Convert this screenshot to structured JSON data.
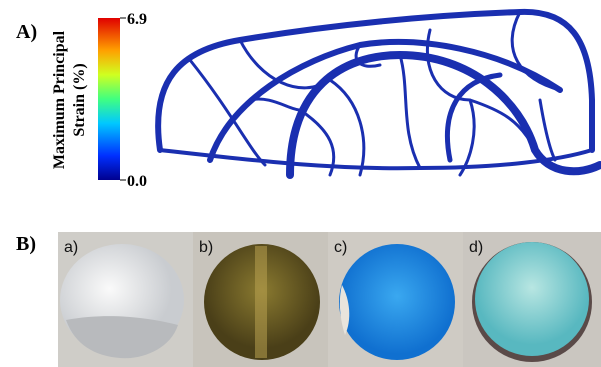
{
  "panel_a": {
    "label": "A)",
    "colorbar": {
      "title_lines": [
        "Maximum Principal",
        "Strain (%)"
      ],
      "max_label": "6.9",
      "min_label": "0.0"
    }
  },
  "panel_b": {
    "label": "B)",
    "photos": [
      {
        "label": "a)"
      },
      {
        "label": "b)"
      },
      {
        "label": "c)"
      },
      {
        "label": "d)"
      }
    ]
  }
}
